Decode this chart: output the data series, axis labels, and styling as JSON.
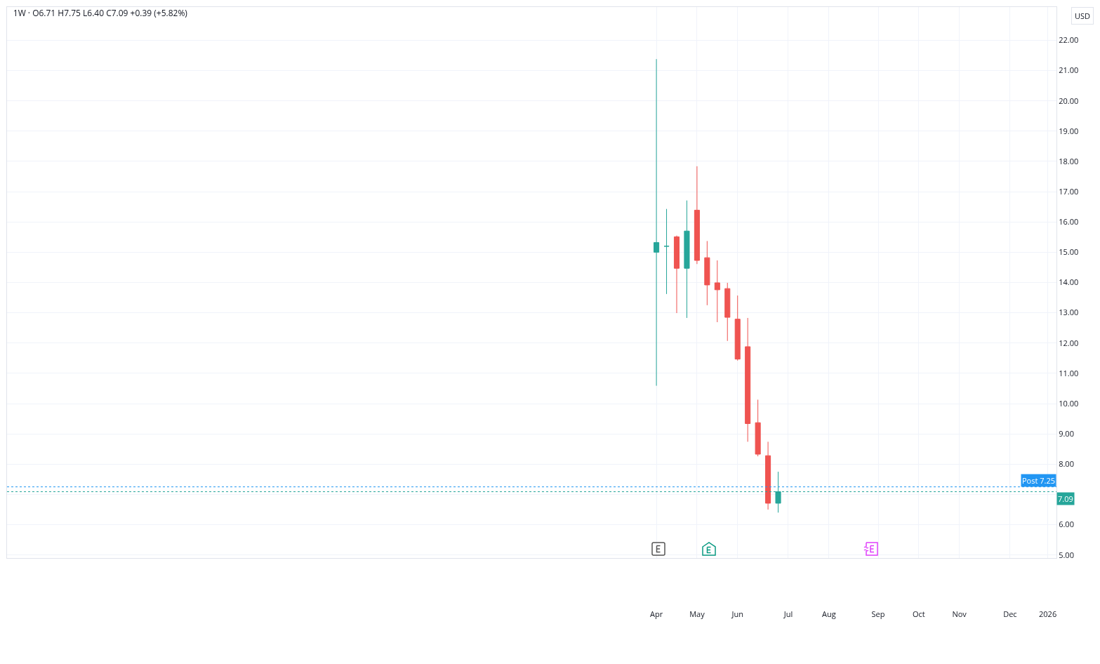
{
  "chart_data": {
    "type": "candlestick",
    "title": "1W · O6.71 H7.75 L6.40 C7.09 +0.39 (+5.82%)",
    "ylabel": "USD",
    "x": [
      "2025-04-07",
      "2025-04-14",
      "2025-04-21",
      "2025-04-28",
      "2025-05-05",
      "2025-05-12",
      "2025-05-19",
      "2025-05-26",
      "2025-06-02",
      "2025-06-09",
      "2025-06-16",
      "2025-06-23",
      "2025-06-30"
    ],
    "ohlc": [
      [
        15.0,
        21.38,
        10.59,
        15.32
      ],
      [
        15.2,
        16.43,
        13.62,
        15.2
      ],
      [
        15.51,
        15.55,
        12.99,
        14.47
      ],
      [
        14.47,
        16.71,
        12.83,
        15.7
      ],
      [
        16.39,
        17.84,
        14.61,
        14.73
      ],
      [
        14.82,
        15.37,
        13.25,
        13.92
      ],
      [
        13.99,
        14.73,
        12.69,
        13.76
      ],
      [
        13.8,
        13.99,
        12.07,
        12.85
      ],
      [
        12.79,
        13.57,
        11.42,
        11.47
      ],
      [
        11.88,
        12.83,
        8.74,
        9.34
      ],
      [
        9.37,
        10.13,
        8.26,
        8.33
      ],
      [
        8.28,
        8.74,
        6.5,
        6.71
      ],
      [
        6.71,
        7.75,
        6.4,
        7.09
      ]
    ],
    "colors": [
      "#26a69a",
      "#26a69a",
      "#ef5350",
      "#26a69a",
      "#ef5350",
      "#ef5350",
      "#ef5350",
      "#ef5350",
      "#ef5350",
      "#ef5350",
      "#ef5350",
      "#ef5350",
      "#26a69a"
    ],
    "xlim": [
      "2024-01-15",
      "2026-01-08"
    ],
    "xticks": [
      {
        "value": "2025-04-07",
        "label": "Apr"
      },
      {
        "value": "2025-05-05",
        "label": "May"
      },
      {
        "value": "2025-06-02",
        "label": "Jun"
      },
      {
        "value": "2025-07-07",
        "label": "Jul"
      },
      {
        "value": "2025-08-04",
        "label": "Aug"
      },
      {
        "value": "2025-09-07",
        "label": "Sep"
      },
      {
        "value": "2025-10-05",
        "label": "Oct"
      },
      {
        "value": "2025-11-02",
        "label": "Nov"
      },
      {
        "value": "2025-12-07",
        "label": "Dec"
      },
      {
        "value": "2026-01-02",
        "label": "2026"
      }
    ],
    "ylim": [
      4.9,
      23.1
    ],
    "yticks": [
      {
        "value": 5,
        "label": "5.00"
      },
      {
        "value": 6,
        "label": "6.00"
      },
      {
        "value": 7,
        "label": null
      },
      {
        "value": 8,
        "label": "8.00"
      },
      {
        "value": 9,
        "label": "9.00"
      },
      {
        "value": 10,
        "label": "10.00"
      },
      {
        "value": 11,
        "label": "11.00"
      },
      {
        "value": 12,
        "label": "12.00"
      },
      {
        "value": 13,
        "label": "13.00"
      },
      {
        "value": 14,
        "label": "14.00"
      },
      {
        "value": 15,
        "label": "15.00"
      },
      {
        "value": 16,
        "label": "16.00"
      },
      {
        "value": 17,
        "label": "17.00"
      },
      {
        "value": 18,
        "label": "18.00"
      },
      {
        "value": 19,
        "label": "19.00"
      },
      {
        "value": 20,
        "label": "20.00"
      },
      {
        "value": 21,
        "label": "21.00"
      },
      {
        "value": 22,
        "label": "22.00"
      }
    ],
    "ref_lines": [
      {
        "axis": "y",
        "value": 7.25,
        "label": "Post 7.25",
        "color": "#2196f3",
        "line_style": "dotted"
      },
      {
        "axis": "y",
        "value": 7.09,
        "label": "7.09",
        "color": "#26a69a",
        "line_style": "dotted"
      }
    ],
    "grid": true
  }
}
